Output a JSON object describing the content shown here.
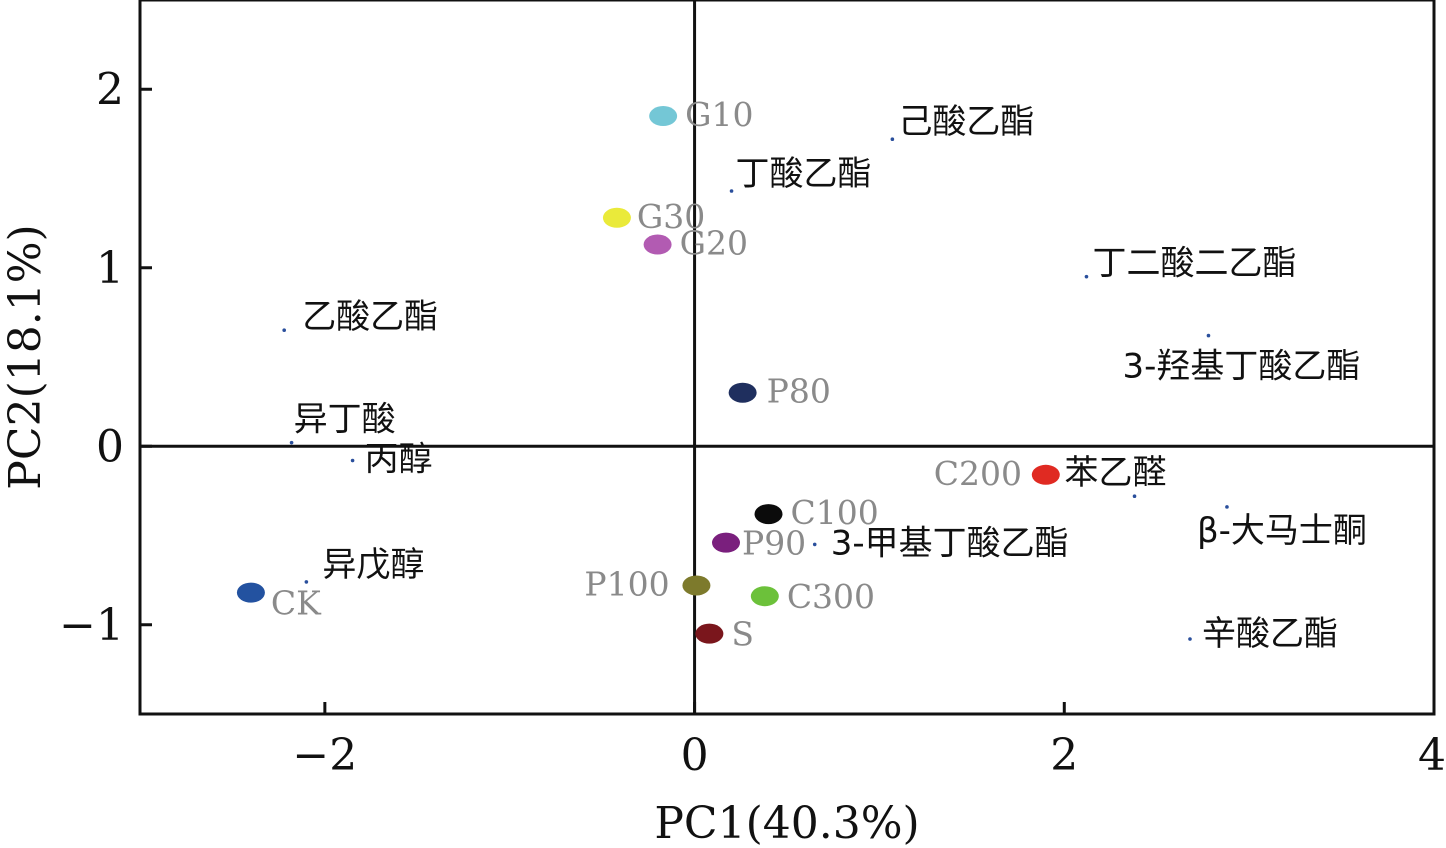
{
  "chart_data": {
    "type": "scatter",
    "title": "",
    "xlabel": "PC1(40.3%)",
    "ylabel": "PC2(18.1%)",
    "xlim": [
      -3,
      4
    ],
    "ylim": [
      -1.5,
      2.5
    ],
    "x_ticks": [
      {
        "value": -2,
        "label": "−2"
      },
      {
        "value": 0,
        "label": "0"
      },
      {
        "value": 2,
        "label": "2"
      },
      {
        "value": 4,
        "label": "4"
      }
    ],
    "y_ticks": [
      {
        "value": -1,
        "label": "−1"
      },
      {
        "value": 0,
        "label": "0"
      },
      {
        "value": 1,
        "label": "1"
      },
      {
        "value": 2,
        "label": "2"
      }
    ],
    "reference_lines": {
      "x": 0,
      "y": 0
    },
    "grid": false,
    "samples": [
      {
        "label": "G10",
        "x": -0.17,
        "y": 1.85,
        "color": "#74c7d6"
      },
      {
        "label": "G30",
        "x": -0.42,
        "y": 1.28,
        "color": "#eaea3a"
      },
      {
        "label": "G20",
        "x": -0.2,
        "y": 1.13,
        "color": "#b25bb2"
      },
      {
        "label": "P80",
        "x": 0.26,
        "y": 0.3,
        "color": "#1f2f5e"
      },
      {
        "label": "C200",
        "x": 1.9,
        "y": -0.16,
        "color": "#e02a22"
      },
      {
        "label": "C100",
        "x": 0.4,
        "y": -0.38,
        "color": "#0b0b0b"
      },
      {
        "label": "P90",
        "x": 0.17,
        "y": -0.54,
        "color": "#7a1f7d"
      },
      {
        "label": "P100",
        "x": 0.01,
        "y": -0.78,
        "color": "#7d7a2c"
      },
      {
        "label": "C300",
        "x": 0.38,
        "y": -0.84,
        "color": "#6cc13a"
      },
      {
        "label": "S",
        "x": 0.08,
        "y": -1.05,
        "color": "#7a161c"
      },
      {
        "label": "CK",
        "x": -2.4,
        "y": -0.82,
        "color": "#2352a0"
      }
    ],
    "variables": [
      {
        "label": "己酸乙酯",
        "x": 1.07,
        "y": 1.72
      },
      {
        "label": "丁酸乙酯",
        "x": 0.2,
        "y": 1.43
      },
      {
        "label": "丁二酸二乙酯",
        "x": 2.12,
        "y": 0.95
      },
      {
        "label": "3-羟基丁酸乙酯",
        "x": 2.78,
        "y": 0.62
      },
      {
        "label": "乙酸乙酯",
        "x": -2.22,
        "y": 0.65
      },
      {
        "label": "异丁酸",
        "x": -2.18,
        "y": 0.02
      },
      {
        "label": "丙醇",
        "x": -1.85,
        "y": -0.08
      },
      {
        "label": "苯乙醛",
        "x": 2.38,
        "y": -0.28
      },
      {
        "label": "β-大马士酮",
        "x": 2.88,
        "y": -0.34
      },
      {
        "label": "3-甲基丁酸乙酯",
        "x": 0.65,
        "y": -0.55
      },
      {
        "label": "异戊醇",
        "x": -2.1,
        "y": -0.76
      },
      {
        "label": "辛酸乙酯",
        "x": 2.68,
        "y": -1.08
      }
    ]
  }
}
